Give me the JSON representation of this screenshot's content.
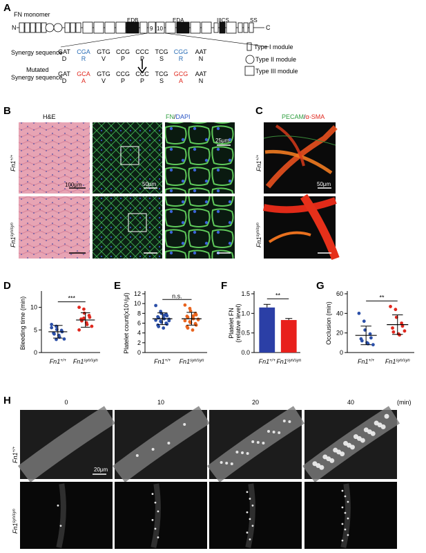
{
  "panel_a": {
    "letter": "A",
    "title": "FN monomer",
    "n_label": "N",
    "c_label": "C",
    "domain_labels": {
      "edb": "EDB",
      "eda": "EDA",
      "iiics": "IIICS",
      "ss": "SS",
      "mod9": "9",
      "mod10": "10"
    },
    "synergy_label": "Synergy sequence",
    "mutated_label_line1": "Mutated",
    "mutated_label_line2": "Synergy sequence",
    "synergy_codons": [
      "GAT",
      "CGA",
      "GTG",
      "CCG",
      "CCC",
      "TCG",
      "CGG",
      "AAT"
    ],
    "synergy_aa": [
      "D",
      "R",
      "V",
      "P",
      "P",
      "S",
      "R",
      "N"
    ],
    "mutated_codons": [
      "GAT",
      "GCA",
      "GTG",
      "CCG",
      "CCC",
      "TCG",
      "GCG",
      "AAT"
    ],
    "mutated_aa": [
      "D",
      "A",
      "V",
      "P",
      "P",
      "S",
      "A",
      "N"
    ],
    "legend": [
      "Type I module",
      "Type II module",
      "Type III module"
    ],
    "colors": {
      "synergy_highlight": "#2a6db5",
      "mutation_highlight": "#e0281e"
    }
  },
  "panel_b": {
    "letter": "B",
    "he_title": "H&E",
    "fn_title_fn": "FN",
    "fn_title_sep": "/",
    "fn_title_dapi": "DAPI",
    "row_labels_base": [
      "Fn1",
      "Fn1"
    ],
    "row_labels_sup": [
      "+/+",
      "syn/syn"
    ],
    "scalebars": [
      "100μm",
      "50μm",
      "25μm"
    ]
  },
  "panel_c": {
    "letter": "C",
    "title_pecam": "PECAM",
    "title_sep": "/",
    "title_sma": "α-SMA",
    "scalebar": "50μm"
  },
  "panel_d": {
    "letter": "D",
    "ylabel": "Bleeding time (min)",
    "significance": "***",
    "yticks": [
      "0",
      "5",
      "10"
    ],
    "xlabels_base": [
      "Fn1",
      "Fn1"
    ],
    "xlabels_sup": [
      "+/+",
      "syn/syn"
    ]
  },
  "panel_e": {
    "letter": "E",
    "ylabel": "Platelet count(x10⁵/μl)",
    "significance": "n.s.",
    "yticks": [
      "0",
      "2",
      "4",
      "6",
      "8",
      "10",
      "12"
    ],
    "xlabels_base": [
      "Fn1",
      "Fn1"
    ],
    "xlabels_sup": [
      "+/+",
      "syn/syn"
    ]
  },
  "panel_f": {
    "letter": "F",
    "ylabel_line1": "Platelet FN",
    "ylabel_line2": "(relative level)",
    "significance": "**",
    "yticks": [
      "0.0",
      "0.5",
      "1.0",
      "1.5"
    ],
    "xlabels_base": [
      "Fn1",
      "Fn1"
    ],
    "xlabels_sup": [
      "+/+",
      "syn/syn"
    ]
  },
  "panel_g": {
    "letter": "G",
    "ylabel": "Occlusion  (min)",
    "significance": "**",
    "yticks": [
      "0",
      "20",
      "40",
      "60"
    ],
    "xlabels_base": [
      "Fn1",
      "Fn1"
    ],
    "xlabels_sup": [
      "+/+",
      "syn/syn"
    ]
  },
  "panel_h": {
    "letter": "H",
    "timepoints": [
      "0",
      "10",
      "20",
      "40"
    ],
    "unit": "(min)",
    "scalebar": "20μm",
    "row_labels_base": [
      "Fn1",
      "Fn1"
    ],
    "row_labels_sup": [
      "+/+",
      "syn/syn"
    ]
  },
  "chart_data": [
    {
      "type": "scatter",
      "panel": "D",
      "ylabel": "Bleeding time (min)",
      "ylim": [
        0,
        13
      ],
      "categories": [
        "Fn1+/+",
        "Fn1syn/syn"
      ],
      "series": [
        {
          "name": "Fn1+/+",
          "color": "#2b4fa8",
          "mean": 4.6,
          "sd": 1.4,
          "values": [
            6.2,
            5.8,
            5.1,
            4.9,
            4.6,
            4.3,
            4.1,
            3.8,
            3.4,
            3.0,
            5.5,
            2.9
          ]
        },
        {
          "name": "Fn1syn/syn",
          "color": "#e0281e",
          "mean": 7.2,
          "sd": 1.6,
          "values": [
            10.0,
            9.6,
            8.7,
            8.2,
            7.8,
            7.4,
            7.0,
            6.6,
            6.2,
            5.8,
            5.0,
            7.6
          ]
        }
      ]
    },
    {
      "type": "scatter",
      "panel": "E",
      "ylabel": "Platelet count(x10⁵/μl)",
      "ylim": [
        0,
        12
      ],
      "categories": [
        "Fn1+/+",
        "Fn1syn/syn"
      ],
      "series": [
        {
          "name": "Fn1+/+",
          "color": "#2b4fa8",
          "mean": 6.9,
          "sd": 1.2,
          "values": [
            9.6,
            8.4,
            8.0,
            7.8,
            7.5,
            7.3,
            7.1,
            7.0,
            6.9,
            6.8,
            6.6,
            6.4,
            6.2,
            6.0,
            5.8,
            5.6,
            5.3,
            5.0,
            7.6,
            6.5
          ]
        },
        {
          "name": "Fn1syn/syn",
          "color": "#e9641e",
          "mean": 6.9,
          "sd": 1.3,
          "values": [
            9.7,
            9.0,
            8.5,
            8.0,
            7.7,
            7.4,
            7.2,
            7.0,
            6.9,
            6.7,
            6.5,
            6.3,
            6.1,
            5.9,
            5.6,
            5.3,
            5.0,
            4.6,
            7.5,
            6.8
          ]
        }
      ]
    },
    {
      "type": "bar",
      "panel": "F",
      "ylabel": "Platelet FN (relative level)",
      "ylim": [
        0,
        1.5
      ],
      "categories": [
        "Fn1+/+",
        "Fn1syn/syn"
      ],
      "values": [
        1.15,
        0.83
      ],
      "errors": [
        0.08,
        0.04
      ],
      "colors": [
        "#2b3fa6",
        "#e8201c"
      ]
    },
    {
      "type": "scatter",
      "panel": "G",
      "ylabel": "Occlusion (min)",
      "ylim": [
        0,
        60
      ],
      "categories": [
        "Fn1+/+",
        "Fn1syn/syn"
      ],
      "series": [
        {
          "name": "Fn1+/+",
          "color": "#2b4fa8",
          "mean": 17.5,
          "sd": 9.5,
          "values": [
            40.0,
            32.0,
            23.0,
            19.0,
            15.0,
            14.0,
            12.0,
            10.0,
            9.0,
            8.0
          ]
        },
        {
          "name": "Fn1syn/syn",
          "color": "#e0281e",
          "mean": 28.5,
          "sd": 10.0,
          "values": [
            47.0,
            44.0,
            36.0,
            30.0,
            27.0,
            25.0,
            21.0,
            19.0,
            18.0,
            22.0
          ]
        }
      ]
    }
  ]
}
